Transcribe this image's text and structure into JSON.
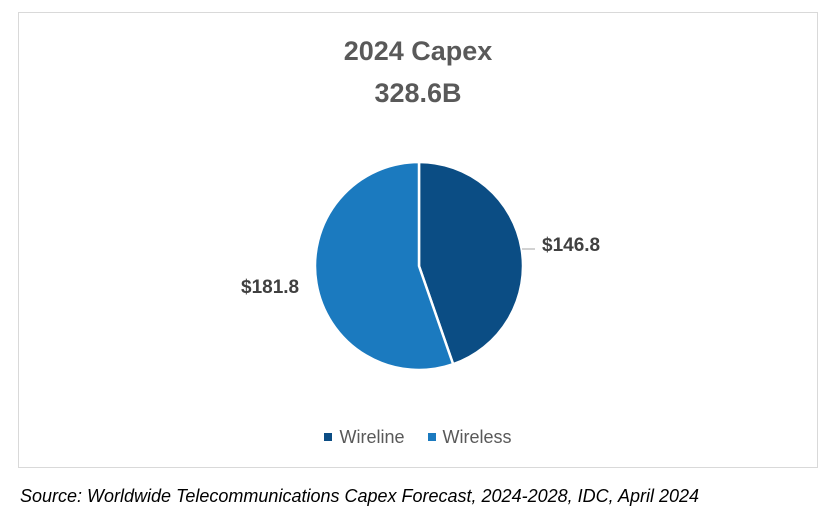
{
  "chart_data": {
    "type": "pie",
    "title": "2024 Capex",
    "subtitle": "328.6B",
    "categories": [
      "Wireline",
      "Wireless"
    ],
    "values": [
      146.8,
      181.8
    ],
    "data_labels": [
      "$146.8",
      "$181.8"
    ],
    "colors": [
      "#0b4d84",
      "#1b7abf"
    ],
    "legend_position": "bottom"
  },
  "source_note": "Source: Worldwide Telecommunications Capex Forecast, 2024-2028, IDC, April 2024"
}
